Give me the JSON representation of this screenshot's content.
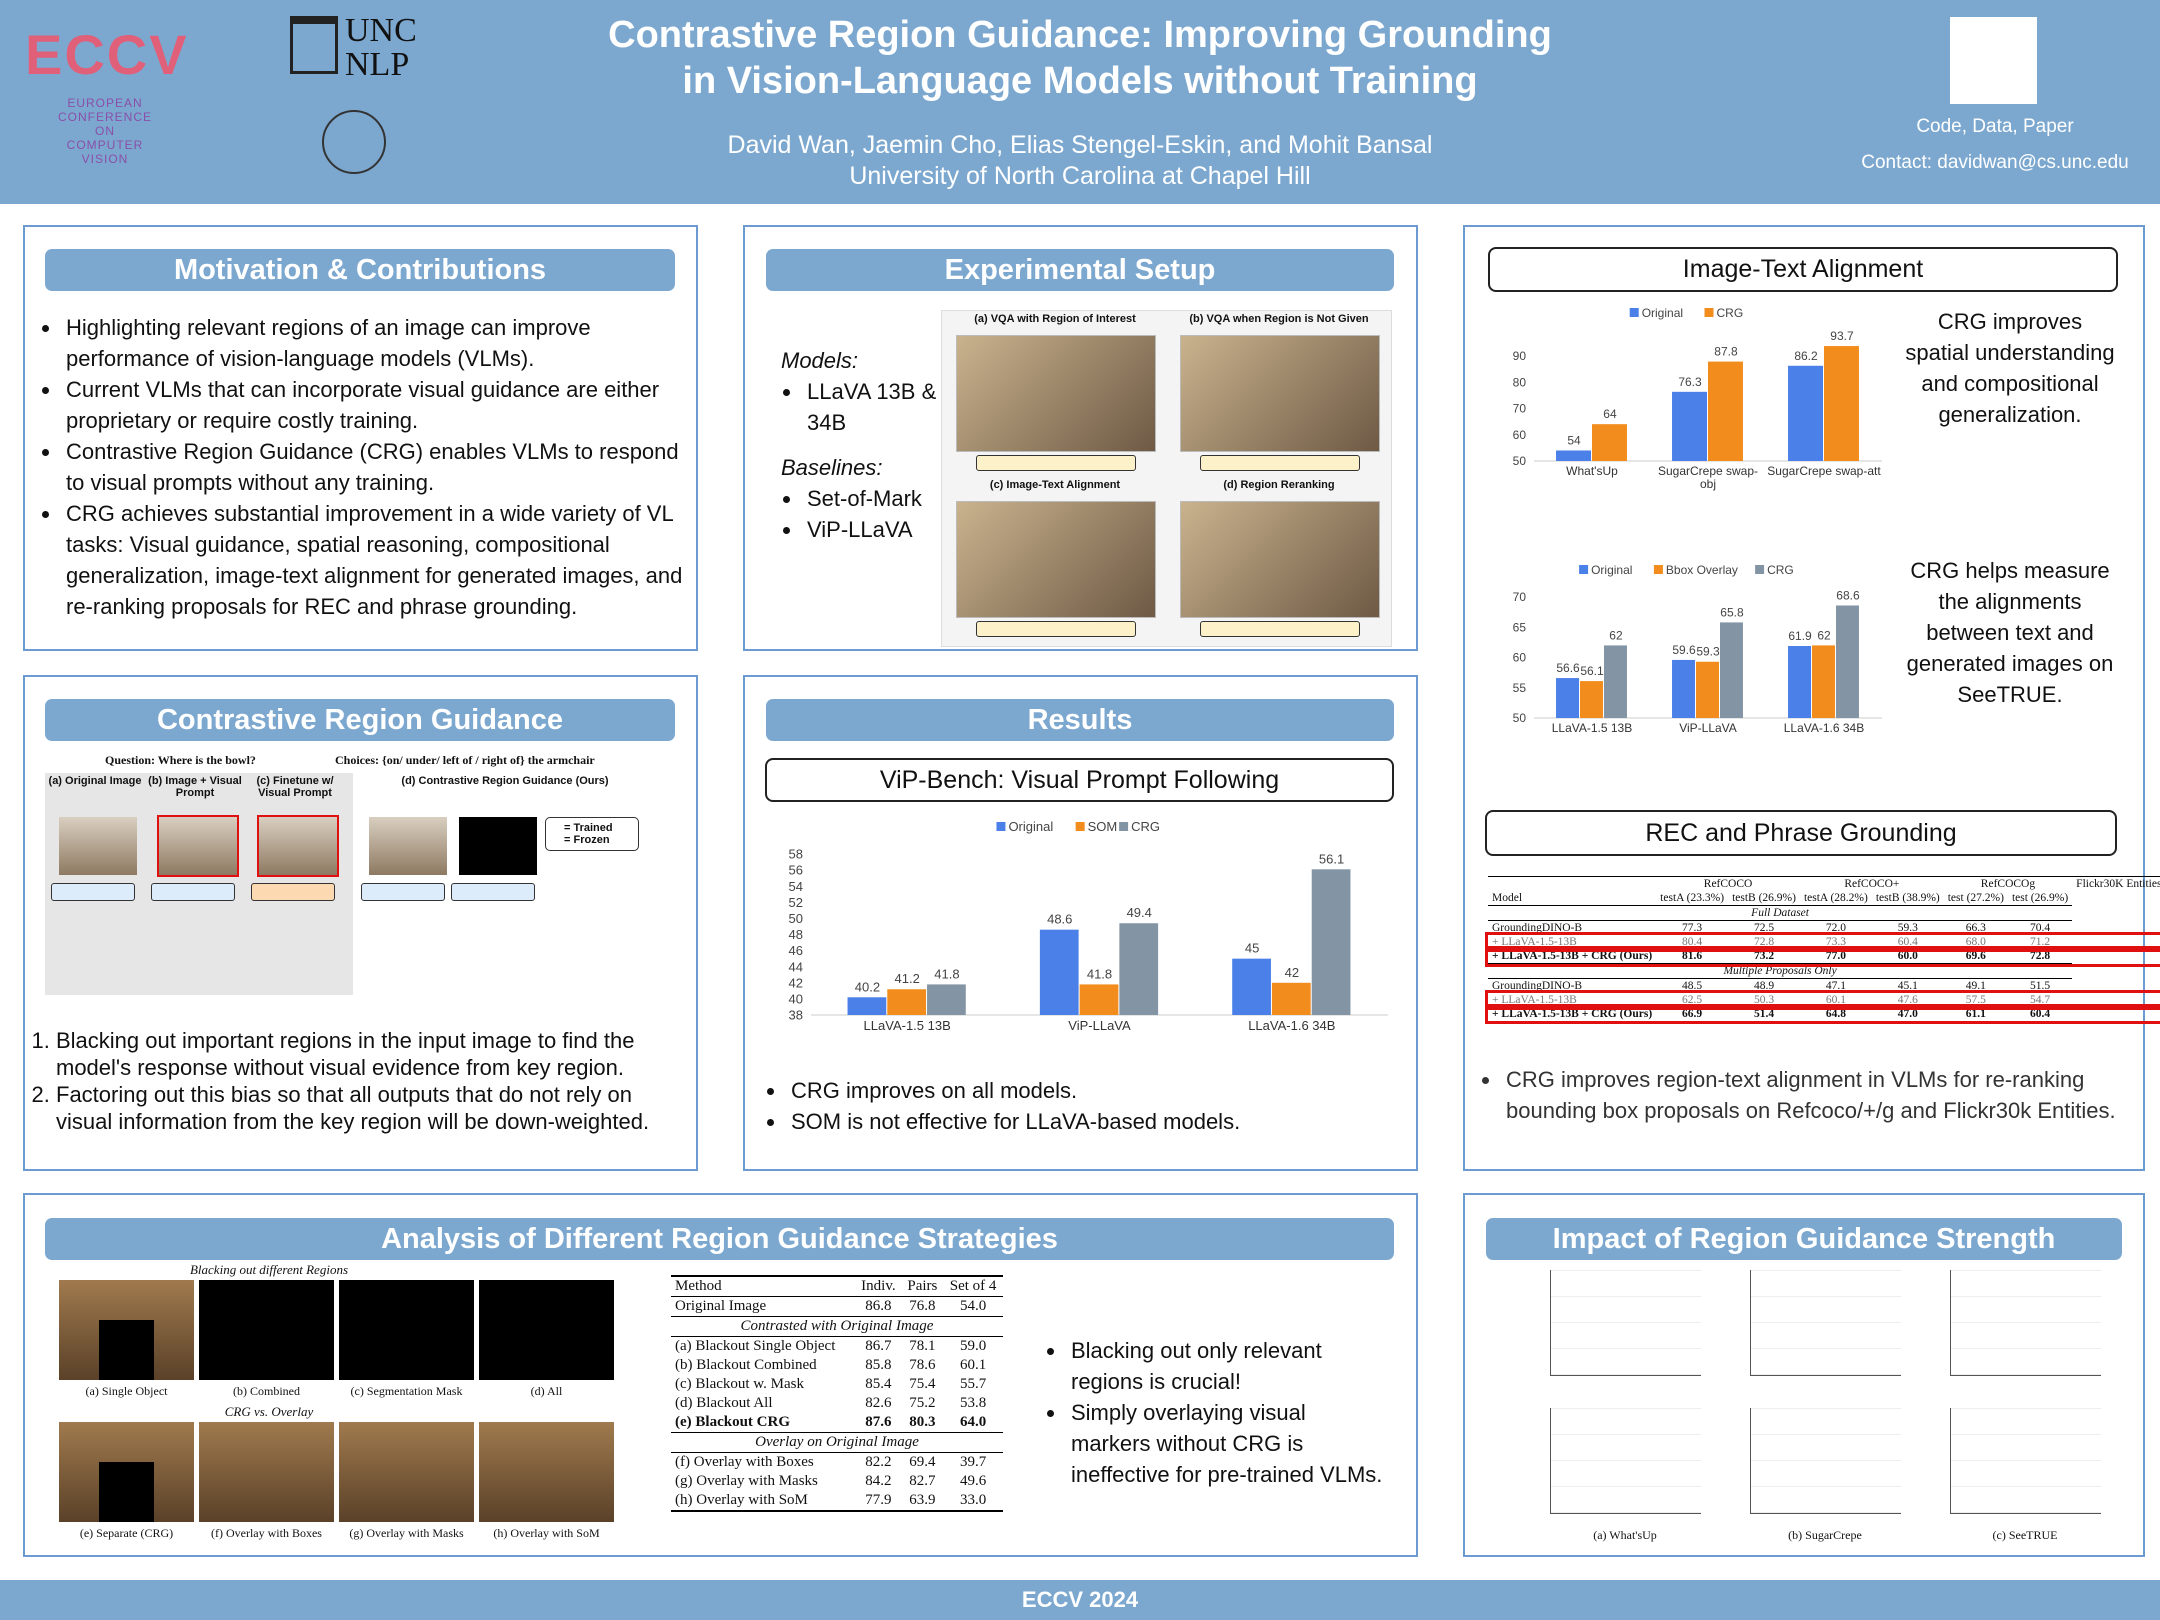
{
  "header": {
    "title_line1": "Contrastive Region Guidance: Improving Grounding",
    "title_line2": "in Vision-Language Models without Training",
    "authors": "David Wan, Jaemin Cho, Elias Stengel-Eskin, and Mohit Bansal",
    "affiliation": "University of North Carolina at Chapel Hill",
    "links": "Code, Data, Paper",
    "contact": "Contact: davidwan@cs.unc.edu",
    "eccv_logo": "ECCV",
    "eccv_subtitle": "EUROPEAN CONFERENCE ON COMPUTER VISION",
    "unc_logo_1": "UNC",
    "unc_logo_2": "NLP"
  },
  "motivation": {
    "heading": "Motivation & Contributions",
    "bullets": [
      "Highlighting relevant regions of an image can improve performance of vision-language models (VLMs).",
      "Current VLMs that can incorporate visual guidance are either proprietary or require costly training.",
      "Contrastive Region Guidance (CRG) enables VLMs to respond to visual prompts without any training.",
      "CRG achieves substantial improvement in a wide variety of VL tasks: Visual guidance, spatial reasoning, compositional generalization, image-text alignment for generated images, and re-ranking proposals for REC and phrase grounding."
    ]
  },
  "setup": {
    "heading": "Experimental Setup",
    "models_label": "Models:",
    "models": [
      "LLaVA 13B & 34B"
    ],
    "baselines_label": "Baselines:",
    "baselines": [
      "Set-of-Mark",
      "ViP-LLaVA"
    ],
    "figure_panels": [
      "(a) VQA with Region of Interest",
      "(b) VQA when Region is Not Given",
      "(c) Image-Text Alignment",
      "(d) Region Reranking"
    ]
  },
  "crg": {
    "heading": "Contrastive Region Guidance",
    "question": "Question: Where is the bowl?",
    "choices": "Choices: {on/ under/ left of / right of} the armchair",
    "columns": [
      "(a) Original Image",
      "(b) Image + Visual Prompt",
      "(c) Finetune w/ Visual Prompt",
      "(d) Contrastive Region Guidance (Ours)"
    ],
    "legend": [
      "= Trained",
      "= Frozen"
    ],
    "steps": [
      "Blacking out important regions in the input image to find the model's response without visual evidence from key region.",
      "Factoring out this bias so that all outputs that do not rely on visual information from the key region will be down-weighted."
    ]
  },
  "results": {
    "heading": "Results",
    "chart": {
      "type": "bar",
      "title": "ViP-Bench: Visual Prompt Following",
      "categories": [
        "LLaVA-1.5 13B",
        "ViP-LLaVA",
        "LLaVA-1.6 34B"
      ],
      "series": [
        {
          "name": "Original",
          "color": "#4a80e8",
          "values": [
            40.2,
            48.6,
            45
          ]
        },
        {
          "name": "SOM",
          "color": "#f28c1c",
          "values": [
            41.2,
            41.8,
            42
          ]
        },
        {
          "name": "CRG",
          "color": "#8395a5",
          "values": [
            41.8,
            49.4,
            56.1
          ]
        }
      ],
      "ylim": [
        38,
        58
      ],
      "yticks": [
        38,
        40,
        42,
        44,
        46,
        48,
        50,
        52,
        54,
        56,
        58
      ]
    },
    "bullets": [
      "CRG improves on all models.",
      "SOM is not effective for LLaVA-based models."
    ]
  },
  "alignment": {
    "chart": {
      "type": "bar",
      "title": "Image-Text Alignment",
      "categories": [
        "What'sUp",
        "SugarCrepe swap-obj",
        "SugarCrepe swap-att"
      ],
      "series": [
        {
          "name": "Original",
          "color": "#4a80e8",
          "values": [
            54,
            76.3,
            86.2
          ]
        },
        {
          "name": "CRG",
          "color": "#f28c1c",
          "values": [
            64,
            87.8,
            93.7
          ]
        }
      ],
      "ylim": [
        50,
        96
      ],
      "yticks": [
        50,
        60,
        70,
        80,
        90
      ]
    },
    "note": "CRG improves spatial understanding and compositional generalization.",
    "chart2": {
      "type": "bar",
      "categories": [
        "LLaVA-1.5 13B",
        "ViP-LLaVA",
        "LLaVA-1.6 34B"
      ],
      "series": [
        {
          "name": "Original",
          "color": "#4a80e8",
          "values": [
            56.6,
            59.6,
            61.9
          ]
        },
        {
          "name": "Bbox Overlay",
          "color": "#f28c1c",
          "values": [
            56.1,
            59.3,
            62
          ]
        },
        {
          "name": "CRG",
          "color": "#8395a5",
          "values": [
            62,
            65.8,
            68.6
          ]
        }
      ],
      "ylim": [
        50,
        70
      ],
      "yticks": [
        50,
        55,
        60,
        65,
        70
      ]
    },
    "note2": "CRG helps measure the alignments between text and generated images on SeeTRUE."
  },
  "rec": {
    "title": "REC and Phrase Grounding",
    "groups": [
      "RefCOCO",
      "RefCOCO+",
      "RefCOCOg",
      "Flickr30K Entities"
    ],
    "columns": [
      "Model",
      "testA (23.3%)",
      "testB (26.9%)",
      "testA (28.2%)",
      "testB (38.9%)",
      "test (27.2%)",
      "test (26.9%)"
    ],
    "sections": [
      {
        "label": "Full Dataset",
        "rows": [
          [
            "GroundingDINO-B",
            "77.3",
            "72.5",
            "72.0",
            "59.3",
            "66.3",
            "70.4"
          ],
          [
            "+ LLaVA-1.5-13B",
            "80.4",
            "72.8",
            "73.3",
            "60.4",
            "68.0",
            "71.2"
          ],
          [
            "+ LLaVA-1.5-13B + CRG (Ours)",
            "81.6",
            "73.2",
            "77.0",
            "60.0",
            "69.6",
            "72.8"
          ]
        ]
      },
      {
        "label": "Multiple Proposals Only",
        "rows": [
          [
            "GroundingDINO-B",
            "48.5",
            "48.9",
            "47.1",
            "45.1",
            "49.1",
            "51.5"
          ],
          [
            "+ LLaVA-1.5-13B",
            "62.5",
            "50.3",
            "60.1",
            "47.6",
            "57.5",
            "54.7"
          ],
          [
            "+ LLaVA-1.5-13B + CRG (Ours)",
            "66.9",
            "51.4",
            "64.8",
            "47.0",
            "61.1",
            "60.4"
          ]
        ]
      }
    ],
    "bullet": "CRG improves region-text alignment in VLMs for re-ranking bounding box proposals on Refcoco/+/g and Flickr30k Entities."
  },
  "analysis": {
    "heading": "Analysis of Different Region Guidance Strategies",
    "figure_title_1": "Blacking out different Regions",
    "figure_title_2": "CRG vs. Overlay",
    "captions": [
      "(a) Single Object",
      "(b) Combined",
      "(c) Segmentation Mask",
      "(d) All",
      "(e) Separate (CRG)",
      "(f) Overlay with Boxes",
      "(g) Overlay with Masks",
      "(h) Overlay with SoM"
    ],
    "table": {
      "columns": [
        "Method",
        "Indiv.",
        "Pairs",
        "Set of 4"
      ],
      "top_rows": [
        [
          "Original Image",
          "86.8",
          "76.8",
          "54.0"
        ]
      ],
      "sections": [
        {
          "label": "Contrasted with Original Image",
          "rows": [
            [
              "(a) Blackout Single Object",
              "86.7",
              "78.1",
              "59.0"
            ],
            [
              "(b) Blackout Combined",
              "85.8",
              "78.6",
              "60.1"
            ],
            [
              "(c) Blackout w. Mask",
              "85.4",
              "75.4",
              "55.7"
            ],
            [
              "(d) Blackout All",
              "82.6",
              "75.2",
              "53.8"
            ],
            [
              "(e) Blackout CRG",
              "87.6",
              "80.3",
              "64.0"
            ]
          ]
        },
        {
          "label": "Overlay on Original Image",
          "rows": [
            [
              "(f) Overlay with Boxes",
              "82.2",
              "69.4",
              "39.7"
            ],
            [
              "(g) Overlay with Masks",
              "84.2",
              "82.7",
              "49.6"
            ],
            [
              "(h) Overlay with SoM",
              "77.9",
              "63.9",
              "33.0"
            ]
          ]
        }
      ]
    },
    "bullets": [
      "Blacking out only relevant regions is crucial!",
      "Simply overlaying visual markers without CRG is ineffective for pre-trained VLMs."
    ]
  },
  "impact": {
    "heading": "Impact of Region Guidance Strength",
    "captions": [
      "(a) What'sUp",
      "(b) SugarCrepe",
      "(c) SeeTRUE"
    ]
  },
  "footer": "ECCV 2024"
}
